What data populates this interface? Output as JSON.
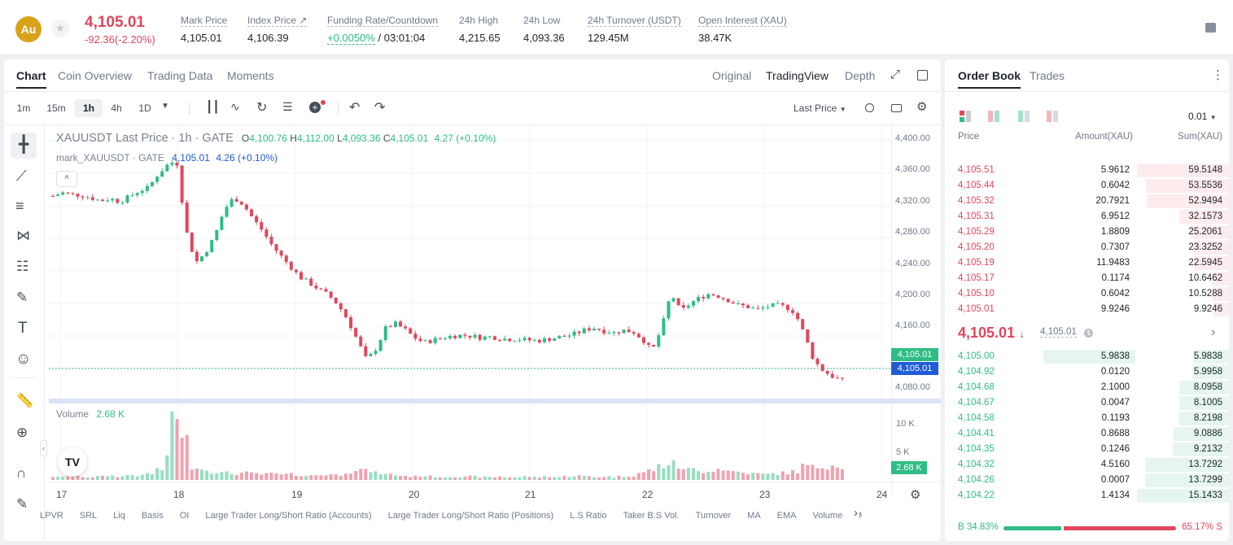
{
  "header": {
    "coin_logo": "Au",
    "last_price": "4,105.01",
    "change": "-92.36(-2.20%)",
    "stats": [
      {
        "label": "Mark Price",
        "value": "4,105.01"
      },
      {
        "label": "Index Price ↗",
        "value": "4,106.39"
      },
      {
        "label": "Funding Rate/Countdown",
        "value_green": "+0.0050%",
        "value": "/ 03:01:04"
      },
      {
        "label": "24h High",
        "value": "4,215.65"
      },
      {
        "label": "24h Low",
        "value": "4,093.36"
      },
      {
        "label": "24h Turnover (USDT)",
        "value": "129.45M"
      },
      {
        "label": "Open Interest (XAU)",
        "value": "38.47K"
      }
    ]
  },
  "chart_tabs": [
    "Chart",
    "Coin Overview",
    "Trading Data",
    "Moments"
  ],
  "view_tabs": [
    "Original",
    "TradingView",
    "Depth"
  ],
  "intervals": [
    "1m",
    "15m",
    "1h",
    "4h",
    "1D"
  ],
  "price_type": "Last Price",
  "legend": {
    "symbol": "XAUUSDT Last Price · 1h · GATE",
    "o_label": "O",
    "o": "4,100.76",
    "h_label": "H",
    "h": "4,112.00",
    "l_label": "L",
    "l": "4,093.36",
    "c_label": "C",
    "c": "4,105.01",
    "chg": "4.27 (+0.10%)",
    "mark_name": "mark_XAUUSDT · GATE",
    "mark_val": "4,105.01",
    "mark_chg": "4.26 (+0.10%)"
  },
  "volume_legend": {
    "label": "Volume",
    "value": "2.68 K"
  },
  "price_ticks": [
    "4,400.00",
    "4,360.00",
    "4,320.00",
    "4,280.00",
    "4,240.00",
    "4,200.00",
    "4,160.00",
    "4,080.00"
  ],
  "price_markers": {
    "last": "4,105.01",
    "mark": "4,105.01",
    "volume": "2.68 K"
  },
  "volume_ticks": [
    "10 K",
    "5 K"
  ],
  "date_ticks": [
    "17",
    "18",
    "19",
    "20",
    "21",
    "22",
    "23",
    "24"
  ],
  "indicators": [
    "LPVR",
    "SRL",
    "Liq",
    "Basis",
    "OI",
    "Large Trader Long/Short Ratio (Accounts)",
    "Large Trader Long/Short Ratio (Positions)",
    "L.S Ratio",
    "Taker B.S Vol.",
    "Turnover",
    "MA",
    "EMA",
    "Volume",
    "MACD"
  ],
  "chart_data": {
    "type": "candlestick",
    "interval": "1h",
    "x_ticks": [
      "17",
      "18",
      "19",
      "20",
      "21",
      "22",
      "23",
      "24"
    ],
    "price_range": [
      4070,
      4410
    ],
    "volume_range": [
      0,
      14000
    ],
    "close_path": [
      4332,
      4336,
      4334,
      4333,
      4330,
      4326,
      4329,
      4325,
      4331,
      4338,
      4342,
      4358,
      4370,
      4376,
      4290,
      4250,
      4262,
      4282,
      4315,
      4330,
      4322,
      4305,
      4290,
      4272,
      4258,
      4245,
      4232,
      4225,
      4217,
      4210,
      4198,
      4180,
      4155,
      4130,
      4145,
      4170,
      4175,
      4168,
      4158,
      4152,
      4155,
      4158,
      4160,
      4161,
      4160,
      4158,
      4159,
      4157,
      4156,
      4156,
      4155,
      4154,
      4156,
      4158,
      4160,
      4163,
      4168,
      4170,
      4166,
      4164,
      4167,
      4165,
      4156,
      4141,
      4170,
      4213,
      4190,
      4200,
      4207,
      4212,
      4209,
      4204,
      4198,
      4196,
      4192,
      4196,
      4198,
      4196,
      4189,
      4162,
      4130,
      4117,
      4110,
      4105
    ],
    "volume_relative": [
      0.05,
      0.04,
      0.06,
      0.05,
      0.04,
      0.05,
      0.06,
      0.05,
      0.07,
      0.06,
      0.09,
      0.15,
      0.28,
      1.0,
      0.55,
      0.2,
      0.15,
      0.12,
      0.1,
      0.09,
      0.1,
      0.09,
      0.08,
      0.09,
      0.07,
      0.08,
      0.07,
      0.06,
      0.07,
      0.08,
      0.07,
      0.12,
      0.15,
      0.13,
      0.1,
      0.08,
      0.07,
      0.06,
      0.05,
      0.06,
      0.05,
      0.04,
      0.05,
      0.04,
      0.05,
      0.04,
      0.04,
      0.05,
      0.04,
      0.04,
      0.05,
      0.04,
      0.05,
      0.04,
      0.05,
      0.06,
      0.05,
      0.04,
      0.05,
      0.04,
      0.05,
      0.06,
      0.1,
      0.14,
      0.2,
      0.23,
      0.18,
      0.15,
      0.12,
      0.14,
      0.16,
      0.13,
      0.12,
      0.1,
      0.09,
      0.08,
      0.09,
      0.1,
      0.12,
      0.2,
      0.18,
      0.2,
      0.22,
      0.2
    ]
  },
  "order_book": {
    "tabs": [
      "Order Book",
      "Trades"
    ],
    "precision": "0.01",
    "headers": [
      "Price",
      "Amount(XAU)",
      "Sum(XAU)"
    ],
    "asks": [
      [
        "4,105.51",
        "5.9612",
        "59.5148"
      ],
      [
        "4,105.44",
        "0.6042",
        "53.5536"
      ],
      [
        "4,105.32",
        "20.7921",
        "52.9494"
      ],
      [
        "4,105.31",
        "6.9512",
        "32.1573"
      ],
      [
        "4,105.29",
        "1.8809",
        "25.2061"
      ],
      [
        "4,105.20",
        "0.7307",
        "23.3252"
      ],
      [
        "4,105.19",
        "11.9483",
        "22.5945"
      ],
      [
        "4,105.17",
        "0.1174",
        "10.6462"
      ],
      [
        "4,105.10",
        "0.6042",
        "10.5288"
      ],
      [
        "4,105.01",
        "9.9246",
        "9.9246"
      ]
    ],
    "ask_sum_fraction": [
      1.0,
      0.9,
      0.89,
      0.54,
      0.42,
      0.39,
      0.38,
      0.18,
      0.18,
      0.17
    ],
    "mid_price": "4,105.01",
    "mid_arrow": "↓",
    "mid_mark": "4,105.01",
    "bids": [
      [
        "4,105.00",
        "5.9838",
        "5.9838"
      ],
      [
        "4,104.92",
        "0.0120",
        "5.9958"
      ],
      [
        "4,104.68",
        "2.1000",
        "8.0958"
      ],
      [
        "4,104.67",
        "0.0047",
        "8.1005"
      ],
      [
        "4,104.58",
        "0.1193",
        "8.2198"
      ],
      [
        "4,104.41",
        "0.8688",
        "9.0886"
      ],
      [
        "4,104.35",
        "0.1246",
        "9.2132"
      ],
      [
        "4,104.32",
        "4.5160",
        "13.7292"
      ],
      [
        "4,104.26",
        "0.0007",
        "13.7299"
      ],
      [
        "4,104.22",
        "1.4134",
        "15.1433"
      ]
    ],
    "bid_sum_fraction": [
      0.39,
      0.4,
      0.54,
      0.54,
      0.55,
      0.6,
      0.61,
      0.91,
      0.91,
      1.0
    ],
    "ratio_buy": "B 34.83%",
    "ratio_sell": "65.17% S",
    "buy_fraction": 0.3483,
    "colors": {
      "up": "#2ebd85",
      "down": "#e2465d"
    }
  }
}
